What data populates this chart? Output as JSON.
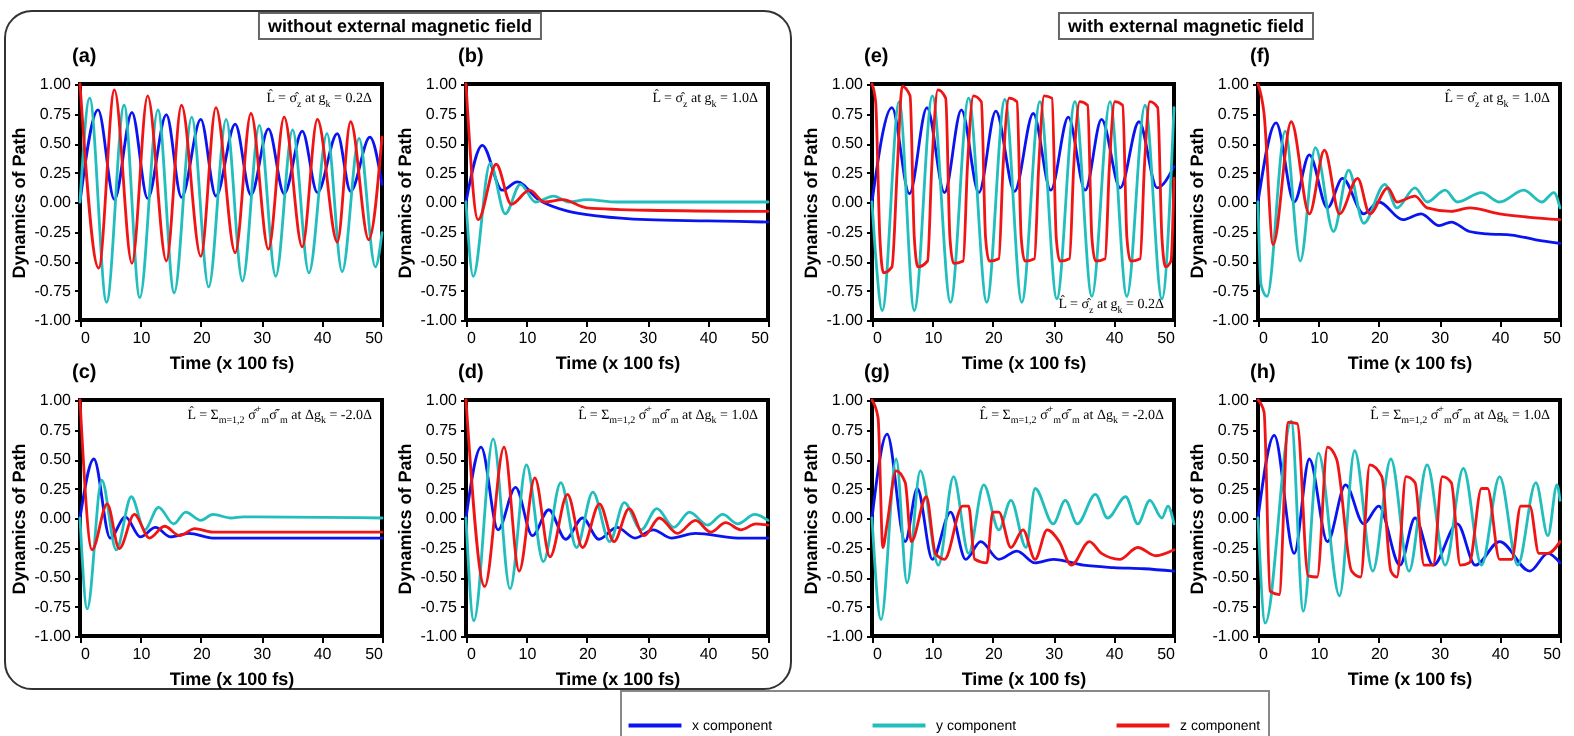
{
  "chart_data": [
    {
      "type": "line",
      "title": "(a)",
      "xlabel": "Time (x 100 fs)",
      "ylabel": "Dynamics of Path",
      "xlim": [
        0,
        50
      ],
      "xticks": [
        0,
        10,
        20,
        30,
        40,
        50
      ],
      "ylim": [
        -1,
        1
      ],
      "yticks": [
        {
          "value": 1,
          "label": "1.00"
        },
        {
          "value": 0.75,
          "label": "0.75"
        },
        {
          "value": 0.5,
          "label": "0.50"
        },
        {
          "value": 0.25,
          "label": "0.25"
        },
        {
          "value": 0,
          "label": "0.00"
        },
        {
          "value": -0.25,
          "label": "-0.25"
        },
        {
          "value": -0.5,
          "label": "-0.50"
        },
        {
          "value": -0.75,
          "label": "-0.75"
        },
        {
          "value": -1,
          "label": "-1.00"
        }
      ],
      "legend": "bottom",
      "annotations": [
        "L̂ = σ̂$_{z}$ at g$_{k}$ = 0.2Δ",
        "without external magnetic field"
      ],
      "series": [
        {
          "name": "x component",
          "color": "#0a14f0",
          "x": [
            0,
            3,
            5.7,
            8.6,
            11.2,
            14.3,
            16.8,
            20,
            22.5,
            25.7,
            28.3,
            31.2,
            33.8,
            36.8,
            39.3,
            42.6,
            44.8,
            48,
            50
          ],
          "values": [
            0,
            0.78,
            0.02,
            0.76,
            0.03,
            0.74,
            0.04,
            0.7,
            0.05,
            0.66,
            0.06,
            0.62,
            0.07,
            0.6,
            0.08,
            0.58,
            0.09,
            0.55,
            0.15
          ]
        },
        {
          "name": "y component",
          "color": "#22bdbd",
          "x": [
            0,
            1.6,
            4.4,
            7.3,
            9.9,
            12.9,
            15.6,
            18.5,
            21.3,
            24.2,
            26.9,
            29.7,
            32.4,
            35.2,
            37.9,
            40.9,
            43.4,
            46.2,
            48.9,
            50
          ],
          "values": [
            0,
            0.88,
            -0.85,
            0.82,
            -0.81,
            0.78,
            -0.77,
            0.72,
            -0.72,
            0.7,
            -0.67,
            0.65,
            -0.63,
            0.61,
            -0.6,
            0.58,
            -0.59,
            0.54,
            -0.55,
            -0.26
          ]
        },
        {
          "name": "z component",
          "color": "#f01414",
          "x": [
            0,
            3.1,
            5.7,
            8.6,
            11.2,
            14.3,
            16.8,
            20,
            22.5,
            25.7,
            28.3,
            31.2,
            33.8,
            36.8,
            39.3,
            42.6,
            44.8,
            47.8,
            50
          ],
          "values": [
            1,
            -0.56,
            0.95,
            -0.52,
            0.9,
            -0.5,
            0.82,
            -0.46,
            0.8,
            -0.43,
            0.75,
            -0.4,
            0.72,
            -0.38,
            0.7,
            -0.34,
            0.68,
            -0.32,
            0.55
          ]
        }
      ]
    },
    {
      "type": "line",
      "title": "(b)",
      "xlabel": "Time (x 100 fs)",
      "ylabel": "Dynamics of Path",
      "xlim": [
        0,
        50
      ],
      "xticks": [
        0,
        10,
        20,
        30,
        40,
        50
      ],
      "ylim": [
        -1,
        1
      ],
      "yticks": [
        {
          "value": 1,
          "label": "1.00"
        },
        {
          "value": 0.75,
          "label": "0.75"
        },
        {
          "value": 0.5,
          "label": "0.50"
        },
        {
          "value": 0.25,
          "label": "0.25"
        },
        {
          "value": 0,
          "label": "0.00"
        },
        {
          "value": -0.25,
          "label": "-0.25"
        },
        {
          "value": -0.5,
          "label": "-0.50"
        },
        {
          "value": -0.75,
          "label": "-0.75"
        },
        {
          "value": -1,
          "label": "-1.00"
        }
      ],
      "annotations": [
        "L̂ = σ̂$_{z}$ at g$_{k}$ = 1.0Δ"
      ],
      "series": [
        {
          "color": "#0a14f0",
          "x": [
            0,
            2.7,
            6,
            8.5,
            12,
            17,
            22,
            30,
            40,
            50
          ],
          "values": [
            0,
            0.48,
            0.1,
            0.17,
            0.02,
            -0.08,
            -0.12,
            -0.15,
            -0.16,
            -0.17
          ]
        },
        {
          "color": "#22bdbd",
          "x": [
            0,
            1.2,
            4,
            6.5,
            9,
            11.5,
            14.5,
            17,
            20,
            25,
            50
          ],
          "values": [
            0,
            -0.63,
            0.33,
            -0.1,
            0.15,
            0,
            0.05,
            0,
            0.02,
            0,
            0
          ]
        },
        {
          "color": "#f01414",
          "x": [
            0,
            2,
            5,
            7.5,
            10.5,
            13,
            16,
            20,
            30,
            50
          ],
          "values": [
            1,
            -0.15,
            0.32,
            -0.02,
            0.1,
            0,
            0.02,
            -0.05,
            -0.07,
            -0.08
          ]
        }
      ]
    },
    {
      "type": "line",
      "title": "(c)",
      "xlabel": "Time (x 100 fs)",
      "ylabel": "Dynamics of Path",
      "xlim": [
        0,
        50
      ],
      "xticks": [
        0,
        10,
        20,
        30,
        40,
        50
      ],
      "ylim": [
        -1,
        1
      ],
      "yticks": [
        {
          "value": 1,
          "label": "1.00"
        },
        {
          "value": 0.75,
          "label": "0.75"
        },
        {
          "value": 0.5,
          "label": "0.50"
        },
        {
          "value": 0.25,
          "label": "0.25"
        },
        {
          "value": 0,
          "label": "0.00"
        },
        {
          "value": -0.25,
          "label": "-0.25"
        },
        {
          "value": -0.5,
          "label": "-0.50"
        },
        {
          "value": -0.75,
          "label": "-0.75"
        },
        {
          "value": -1,
          "label": "-1.00"
        }
      ],
      "annotations": [
        "L̂ = Σ$_{m=1,2}$ σ̂$^{+}$$_{m}$σ̂$^{-}$$_{m}$ at Δg$_{k}$ = -2.0Δ"
      ],
      "series": [
        {
          "color": "#0a14f0",
          "x": [
            0,
            2.3,
            5,
            7.5,
            10,
            12.5,
            15,
            18,
            22,
            50
          ],
          "values": [
            0,
            0.5,
            -0.17,
            0.01,
            -0.16,
            -0.08,
            -0.16,
            -0.13,
            -0.17,
            -0.17
          ]
        },
        {
          "color": "#22bdbd",
          "x": [
            0,
            1.2,
            3.6,
            6,
            8.5,
            10.7,
            13,
            15.5,
            17.5,
            20,
            22,
            25,
            27,
            50
          ],
          "values": [
            0,
            -0.77,
            0.32,
            -0.27,
            0.18,
            -0.1,
            0.09,
            -0.05,
            0.05,
            -0.02,
            0.03,
            0,
            0.01,
            0
          ]
        },
        {
          "color": "#f01414",
          "x": [
            0,
            2,
            4.5,
            6.5,
            9,
            11.5,
            14,
            16.5,
            19,
            22,
            30,
            50
          ],
          "values": [
            1,
            -0.27,
            0.12,
            -0.26,
            0.03,
            -0.17,
            -0.07,
            -0.15,
            -0.09,
            -0.12,
            -0.12,
            -0.12
          ]
        }
      ]
    },
    {
      "type": "line",
      "title": "(d)",
      "xlabel": "Time (x 100 fs)",
      "ylabel": "Dynamics of Path",
      "xlim": [
        0,
        50
      ],
      "xticks": [
        0,
        10,
        20,
        30,
        40,
        50
      ],
      "ylim": [
        -1,
        1
      ],
      "yticks": [
        {
          "value": 1,
          "label": "1.00"
        },
        {
          "value": 0.75,
          "label": "0.75"
        },
        {
          "value": 0.5,
          "label": "0.50"
        },
        {
          "value": 0.25,
          "label": "0.25"
        },
        {
          "value": 0,
          "label": "0.00"
        },
        {
          "value": -0.25,
          "label": "-0.25"
        },
        {
          "value": -0.5,
          "label": "-0.50"
        },
        {
          "value": -0.75,
          "label": "-0.75"
        },
        {
          "value": -1,
          "label": "-1.00"
        }
      ],
      "annotations": [
        "L̂ = Σ$_{m=1,2}$ σ̂$^{+}$$_{m}$σ̂$^{-}$$_{m}$ at Δg$_{k}$ = 1.0Δ"
      ],
      "series": [
        {
          "color": "#0a14f0",
          "x": [
            0,
            2.5,
            5.3,
            8.2,
            11,
            13.7,
            16.5,
            19.3,
            22,
            25,
            28,
            31,
            34,
            38,
            45,
            50
          ],
          "values": [
            0,
            0.6,
            -0.1,
            0.26,
            -0.15,
            0.07,
            -0.18,
            0,
            -0.18,
            -0.08,
            -0.17,
            -0.1,
            -0.17,
            -0.13,
            -0.17,
            -0.17
          ]
        },
        {
          "color": "#22bdbd",
          "x": [
            0,
            1.3,
            4.5,
            7.3,
            10,
            12.8,
            15.7,
            18.3,
            21,
            23.8,
            26.2,
            29,
            31.6,
            34.4,
            37,
            40,
            42.5,
            45,
            47.8,
            50
          ],
          "values": [
            0,
            -0.87,
            0.67,
            -0.6,
            0.45,
            -0.37,
            0.3,
            -0.25,
            0.22,
            -0.2,
            0.13,
            -0.1,
            0.08,
            -0.08,
            0.05,
            -0.06,
            0.03,
            -0.05,
            0.03,
            -0.02
          ]
        },
        {
          "color": "#f01414",
          "x": [
            0,
            3.1,
            6.3,
            8.8,
            11.4,
            13.9,
            16.8,
            19.3,
            22.1,
            24.5,
            27,
            29.5,
            32,
            35,
            38,
            40.5,
            43,
            45.5,
            48,
            50
          ],
          "values": [
            1,
            -0.58,
            0.6,
            -0.45,
            0.34,
            -0.33,
            0.2,
            -0.25,
            0.12,
            -0.2,
            0.08,
            -0.15,
            0,
            -0.13,
            -0.02,
            -0.12,
            -0.04,
            -0.1,
            -0.05,
            -0.06
          ]
        }
      ]
    },
    {
      "type": "line",
      "title": "(e)",
      "xlabel": "Time (x 100 fs)",
      "ylabel": "Dynamics of Path",
      "xlim": [
        0,
        50
      ],
      "xticks": [
        0,
        10,
        20,
        30,
        40,
        50
      ],
      "ylim": [
        -1,
        1
      ],
      "yticks": [
        {
          "value": 1,
          "label": "1.00"
        },
        {
          "value": 0.75,
          "label": "0.75"
        },
        {
          "value": 0.5,
          "label": "0.50"
        },
        {
          "value": 0.25,
          "label": "0.25"
        },
        {
          "value": 0,
          "label": "0.00"
        },
        {
          "value": -0.25,
          "label": "-0.25"
        },
        {
          "value": -0.5,
          "label": "-0.50"
        },
        {
          "value": -0.75,
          "label": "-0.75"
        },
        {
          "value": -1,
          "label": "-1.00"
        }
      ],
      "annotations": [
        "L̂ = σ̂$_{z}$ at g$_{k}$ = 0.2Δ",
        "with external magnetic field"
      ],
      "series": [
        {
          "color": "#0a14f0",
          "x": [
            0,
            3.3,
            6.2,
            9.1,
            12,
            14.8,
            17.7,
            20.5,
            23.6,
            26.7,
            29.6,
            32.5,
            35.3,
            38,
            41.1,
            44.2,
            47.2,
            50
          ],
          "values": [
            0,
            0.8,
            0.07,
            0.8,
            0.08,
            0.78,
            0.08,
            0.77,
            0.09,
            0.75,
            0.1,
            0.72,
            0.1,
            0.7,
            0.12,
            0.68,
            0.12,
            0.3
          ]
        },
        {
          "color": "#22bdbd",
          "x": [
            0,
            0.6,
            1.7,
            4.5,
            7,
            10,
            13,
            16,
            19,
            22,
            24.8,
            27.8,
            30.6,
            33.6,
            36.4,
            39.4,
            42.2,
            45.2,
            48,
            50
          ],
          "values": [
            0,
            -0.45,
            -0.92,
            0.85,
            -0.92,
            0.9,
            -0.85,
            0.88,
            -0.85,
            0.87,
            -0.85,
            0.85,
            -0.82,
            0.85,
            -0.8,
            0.85,
            -0.8,
            0.82,
            -0.82,
            0.8
          ]
        },
        {
          "color": "#f01414",
          "x": [
            0,
            0.6,
            1.3,
            1.9,
            3.3,
            4.2,
            5,
            6.3,
            7,
            7.6,
            9.2,
            9.9,
            10.9,
            12.2,
            12.9,
            13.5,
            15.1,
            15.8,
            16.8,
            18.1,
            18.8,
            19.4,
            21,
            21.7,
            22.7,
            24,
            24.7,
            25.3,
            26.9,
            27.6,
            28.5,
            29.8,
            30.5,
            31.1,
            32.7,
            33.4,
            34.4,
            35.7,
            36.4,
            37,
            38.6,
            39.3,
            40.2,
            41.5,
            42.2,
            42.8,
            44.4,
            45.1,
            46,
            47.3,
            48,
            48.6,
            49.5,
            50
          ],
          "values": [
            1,
            0.85,
            -0.3,
            -0.6,
            -0.55,
            0.3,
            0.98,
            0.9,
            -0.3,
            -0.55,
            -0.5,
            0.3,
            0.95,
            0.88,
            -0.3,
            -0.52,
            -0.5,
            0.3,
            0.9,
            0.85,
            -0.3,
            -0.5,
            -0.48,
            0.3,
            0.88,
            0.85,
            -0.3,
            -0.5,
            -0.48,
            0.3,
            0.9,
            0.88,
            -0.3,
            -0.5,
            -0.48,
            0.3,
            0.85,
            0.82,
            -0.3,
            -0.5,
            -0.48,
            0.3,
            0.85,
            0.82,
            -0.3,
            -0.5,
            -0.48,
            0.3,
            0.85,
            0.8,
            -0.3,
            -0.55,
            -0.5,
            0.2
          ]
        }
      ]
    },
    {
      "type": "line",
      "title": "(f)",
      "xlabel": "Time (x 100 fs)",
      "ylabel": "Dynamics of Path",
      "xlim": [
        0,
        50
      ],
      "xticks": [
        0,
        10,
        20,
        30,
        40,
        50
      ],
      "ylim": [
        -1,
        1
      ],
      "yticks": [
        {
          "value": 1,
          "label": "1.00"
        },
        {
          "value": 0.75,
          "label": "0.75"
        },
        {
          "value": 0.5,
          "label": "0.50"
        },
        {
          "value": 0.25,
          "label": "0.25"
        },
        {
          "value": 0,
          "label": "0.00"
        },
        {
          "value": -0.25,
          "label": "-0.25"
        },
        {
          "value": -0.5,
          "label": "-0.50"
        },
        {
          "value": -0.75,
          "label": "-0.75"
        },
        {
          "value": -1,
          "label": "-1.00"
        }
      ],
      "annotations": [
        "L̂ = σ̂$_{z}$ at g$_{k}$ = 1.0Δ"
      ],
      "series": [
        {
          "color": "#0a14f0",
          "x": [
            0,
            3,
            6,
            8.5,
            11.5,
            14,
            17.5,
            20,
            24,
            27,
            30,
            32,
            35,
            38,
            42,
            46,
            50
          ],
          "values": [
            0,
            0.67,
            0,
            0.4,
            -0.05,
            0.2,
            -0.1,
            0,
            -0.15,
            -0.1,
            -0.2,
            -0.17,
            -0.25,
            -0.27,
            -0.28,
            -0.32,
            -0.35
          ]
        },
        {
          "color": "#22bdbd",
          "x": [
            0,
            0.5,
            1.5,
            4.5,
            7,
            9.5,
            12.5,
            15,
            17.5,
            21,
            23,
            26,
            28,
            31,
            33,
            37,
            40,
            44,
            47,
            49,
            50
          ],
          "values": [
            0,
            -0.7,
            -0.8,
            0.6,
            -0.5,
            0.46,
            -0.25,
            0.27,
            -0.18,
            0.15,
            -0.05,
            0.12,
            0,
            0.1,
            0,
            0.08,
            0,
            0.1,
            0,
            0.08,
            -0.05
          ]
        },
        {
          "color": "#f01414",
          "x": [
            0,
            1,
            2.5,
            5.5,
            8.5,
            11,
            13.5,
            16.5,
            18.5,
            21.5,
            23,
            26,
            28,
            32,
            35,
            40,
            45,
            50
          ],
          "values": [
            1,
            0.75,
            -0.36,
            0.68,
            -0.1,
            0.44,
            -0.1,
            0.2,
            -0.1,
            0.12,
            0,
            0.05,
            -0.05,
            -0.08,
            -0.05,
            -0.1,
            -0.13,
            -0.15
          ]
        }
      ]
    },
    {
      "type": "line",
      "title": "(g)",
      "xlabel": "Time (x 100 fs)",
      "ylabel": "Dynamics of Path",
      "xlim": [
        0,
        50
      ],
      "xticks": [
        0,
        10,
        20,
        30,
        40,
        50
      ],
      "ylim": [
        -1,
        1
      ],
      "yticks": [
        {
          "value": 1,
          "label": "1.00"
        },
        {
          "value": 0.75,
          "label": "0.75"
        },
        {
          "value": 0.5,
          "label": "0.50"
        },
        {
          "value": 0.25,
          "label": "0.25"
        },
        {
          "value": 0,
          "label": "0.00"
        },
        {
          "value": -0.25,
          "label": "-0.25"
        },
        {
          "value": -0.5,
          "label": "-0.50"
        },
        {
          "value": -0.75,
          "label": "-0.75"
        },
        {
          "value": -1,
          "label": "-1.00"
        }
      ],
      "annotations": [
        "L̂ = Σ$_{m=1,2}$ σ̂$^{+}$$_{m}$σ̂$^{-}$$_{m}$ at Δg$_{k}$ = -2.0Δ"
      ],
      "series": [
        {
          "color": "#0a14f0",
          "x": [
            0,
            2.5,
            5.5,
            7.5,
            10,
            13,
            15.5,
            18,
            21,
            24,
            27,
            30,
            35,
            40,
            45,
            50
          ],
          "values": [
            0,
            0.71,
            -0.2,
            0.25,
            -0.35,
            0.05,
            -0.35,
            -0.2,
            -0.35,
            -0.28,
            -0.38,
            -0.35,
            -0.4,
            -0.42,
            -0.43,
            -0.45
          ]
        },
        {
          "color": "#22bdbd",
          "x": [
            0,
            1.5,
            4,
            5.8,
            8,
            11,
            13.5,
            16,
            18.5,
            21,
            23,
            25.5,
            27,
            30,
            32,
            34,
            37,
            39,
            42,
            44,
            46,
            48,
            49,
            50
          ],
          "values": [
            0,
            -0.86,
            0.5,
            -0.55,
            0.4,
            -0.4,
            0.35,
            -0.3,
            0.28,
            -0.1,
            0.15,
            -0.25,
            0.25,
            -0.05,
            0.15,
            -0.05,
            0.2,
            0,
            0.18,
            -0.05,
            0.15,
            0,
            0.1,
            -0.05
          ]
        },
        {
          "color": "#f01414",
          "x": [
            0,
            1,
            1.8,
            2.5,
            4,
            5.5,
            6.5,
            9,
            10.5,
            12,
            15,
            16,
            17,
            19,
            20,
            21,
            23,
            25,
            27,
            29,
            31,
            33,
            36,
            38,
            41,
            44,
            47,
            50
          ],
          "values": [
            1,
            0.85,
            -0.25,
            -0.05,
            0.4,
            0.3,
            -0.2,
            0.18,
            -0.3,
            -0.35,
            0.1,
            0.1,
            -0.35,
            -0.38,
            0.05,
            0.05,
            -0.25,
            -0.1,
            -0.35,
            -0.1,
            -0.2,
            -0.4,
            -0.2,
            -0.3,
            -0.35,
            -0.25,
            -0.32,
            -0.27
          ]
        }
      ]
    },
    {
      "type": "line",
      "title": "(h)",
      "xlabel": "Time (x 100 fs)",
      "ylabel": "Dynamics of Path",
      "xlim": [
        0,
        50
      ],
      "xticks": [
        0,
        10,
        20,
        30,
        40,
        50
      ],
      "ylim": [
        -1,
        1
      ],
      "yticks": [
        {
          "value": 1,
          "label": "1.00"
        },
        {
          "value": 0.75,
          "label": "0.75"
        },
        {
          "value": 0.5,
          "label": "0.50"
        },
        {
          "value": 0.25,
          "label": "0.25"
        },
        {
          "value": 0,
          "label": "0.00"
        },
        {
          "value": -0.25,
          "label": "-0.25"
        },
        {
          "value": -0.5,
          "label": "-0.50"
        },
        {
          "value": -0.75,
          "label": "-0.75"
        },
        {
          "value": -1,
          "label": "-1.00"
        }
      ],
      "annotations": [
        "L̂ = Σ$_{m=1,2}$ σ̂$^{+}$$_{m}$σ̂$^{-}$$_{m}$ at Δg$_{k}$ = 1.0Δ"
      ],
      "series": [
        {
          "color": "#0a14f0",
          "x": [
            0,
            2.7,
            6,
            8.5,
            11.5,
            14.5,
            17.5,
            20,
            23.5,
            26,
            29,
            33,
            36,
            40,
            45,
            48,
            50
          ],
          "values": [
            0,
            0.7,
            -0.3,
            0.5,
            -0.2,
            0.28,
            -0.05,
            0.1,
            -0.4,
            0,
            -0.4,
            -0.05,
            -0.4,
            -0.2,
            -0.45,
            -0.3,
            -0.38
          ]
        },
        {
          "color": "#22bdbd",
          "x": [
            0,
            1.2,
            5.5,
            7.5,
            10,
            13.5,
            16,
            19,
            22,
            25,
            28,
            31,
            34,
            37,
            40,
            43,
            46,
            48,
            49.5,
            50
          ],
          "values": [
            0,
            -0.89,
            0.82,
            -0.79,
            0.55,
            -0.66,
            0.57,
            -0.45,
            0.5,
            -0.45,
            0.45,
            -0.4,
            0.42,
            -0.4,
            0.35,
            -0.4,
            0.3,
            -0.15,
            0.28,
            0.15
          ]
        },
        {
          "color": "#f01414",
          "x": [
            0,
            1,
            2,
            3.5,
            5,
            6.5,
            8.3,
            9.8,
            11.5,
            13,
            15.5,
            17,
            18.5,
            20.5,
            22,
            23,
            24.5,
            26,
            27.5,
            29,
            30.5,
            32,
            33.5,
            35,
            37,
            38,
            40,
            42,
            43.5,
            45,
            46.5,
            48,
            50
          ],
          "values": [
            1,
            0.9,
            -0.62,
            -0.65,
            0.81,
            0.8,
            -0.49,
            -0.5,
            0.6,
            0.5,
            -0.45,
            -0.5,
            0.45,
            0.35,
            -0.45,
            -0.5,
            0.35,
            0.3,
            -0.4,
            -0.4,
            0.35,
            0.3,
            -0.4,
            -0.38,
            0.25,
            0.25,
            -0.35,
            -0.35,
            0.1,
            0.1,
            -0.3,
            -0.3,
            -0.2
          ]
        }
      ]
    }
  ]
}
